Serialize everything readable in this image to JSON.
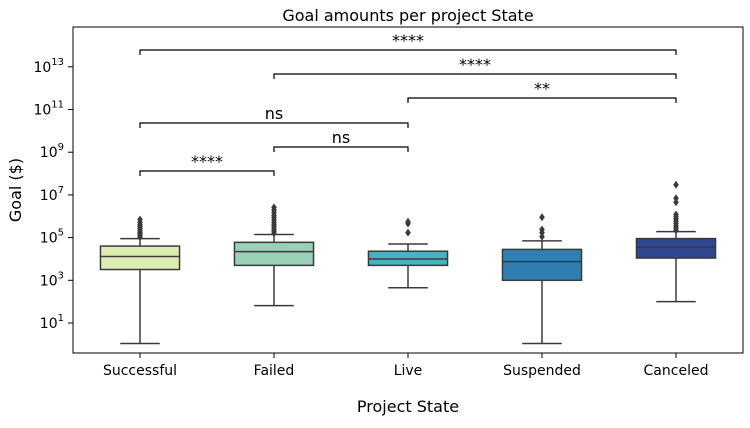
{
  "chart_data": {
    "type": "box",
    "title": "Goal amounts per project State",
    "xlabel": "Project State",
    "ylabel": "Goal ($)",
    "yscale": "log",
    "ylim": [
      0.3,
      1000000000000000.0
    ],
    "yticks": [
      {
        "value": 10,
        "base": "10",
        "exp": "1"
      },
      {
        "value": 1000,
        "base": "10",
        "exp": "3"
      },
      {
        "value": 100000,
        "base": "10",
        "exp": "5"
      },
      {
        "value": 10000000,
        "base": "10",
        "exp": "7"
      },
      {
        "value": 1000000000,
        "base": "10",
        "exp": "9"
      },
      {
        "value": 100000000000,
        "base": "10",
        "exp": "11"
      },
      {
        "value": 10000000000000,
        "base": "10",
        "exp": "13"
      }
    ],
    "categories": [
      "Successful",
      "Failed",
      "Live",
      "Suspended",
      "Canceled"
    ],
    "boxes": [
      {
        "category": "Successful",
        "color": "#dcedb2",
        "whislo": 1.1,
        "q1": 3200,
        "med": 13000,
        "q3": 40000,
        "whishi": 90000,
        "fliers": [
          105000,
          125000,
          150000,
          180000,
          220000,
          270000,
          330000,
          400000,
          520000,
          700000
        ]
      },
      {
        "category": "Failed",
        "color": "#99d0b8",
        "whislo": 65,
        "q1": 5000,
        "med": 22000,
        "q3": 60000,
        "whishi": 140000,
        "fliers": [
          160000,
          200000,
          250000,
          320000,
          400000,
          500000,
          650000,
          850000,
          1100000,
          1500000,
          2000000,
          2600000
        ]
      },
      {
        "category": "Live",
        "color": "#48b1c4",
        "whislo": 450,
        "q1": 5000,
        "med": 10000,
        "q3": 23000,
        "whishi": 50000,
        "fliers": [
          170000,
          450000,
          550000
        ]
      },
      {
        "category": "Suspended",
        "color": "#2f7fb2",
        "whislo": 1.1,
        "q1": 1000,
        "med": 7500,
        "q3": 28000,
        "whishi": 70000,
        "fliers": [
          110000,
          170000,
          240000,
          900000
        ]
      },
      {
        "category": "Canceled",
        "color": "#2f4691",
        "whislo": 100,
        "q1": 11000,
        "med": 35000,
        "q3": 90000,
        "whishi": 190000,
        "fliers": [
          220000,
          280000,
          350000,
          450000,
          580000,
          750000,
          950000,
          1200000,
          4500000,
          7000000,
          30000000
        ]
      }
    ],
    "significance": [
      {
        "from": 0,
        "to": 1,
        "label": "****"
      },
      {
        "from": 0,
        "to": 2,
        "label": "ns"
      },
      {
        "from": 1,
        "to": 2,
        "label": "ns"
      },
      {
        "from": 2,
        "to": 4,
        "label": "**"
      },
      {
        "from": 1,
        "to": 4,
        "label": "****"
      },
      {
        "from": 0,
        "to": 4,
        "label": "****"
      }
    ]
  }
}
